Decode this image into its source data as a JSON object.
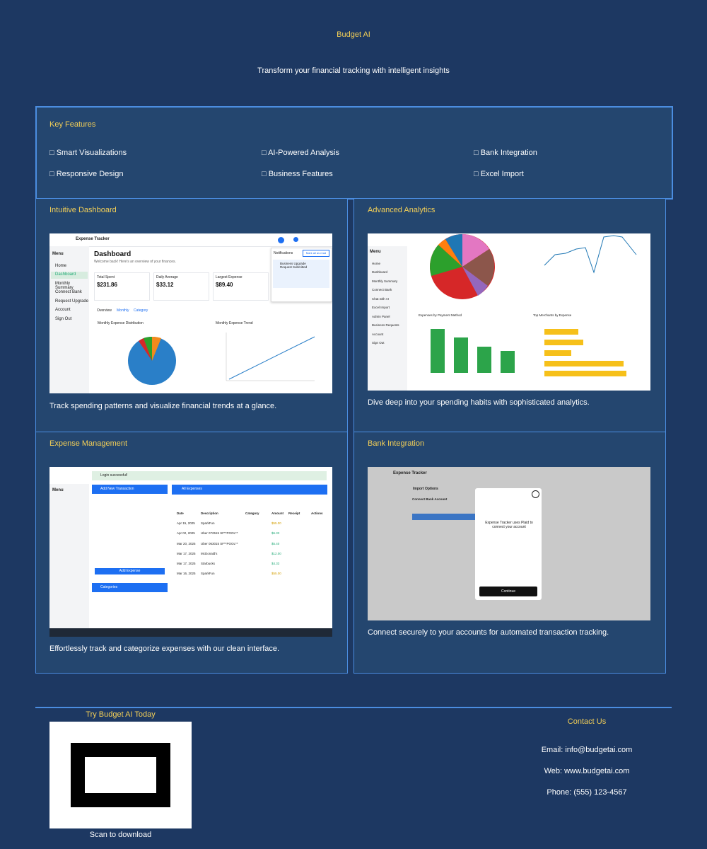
{
  "header": {
    "title": "Budget AI",
    "tagline": "Transform your financial tracking with intelligent insights"
  },
  "features": {
    "heading": "Key Features",
    "items": [
      "□ Smart Visualizations",
      "□ AI-Powered Analysis",
      "□ Bank Integration",
      "□ Responsive Design",
      "□ Business Features",
      "□ Excel Import"
    ]
  },
  "cards": {
    "dashboard": {
      "heading": "Intuitive Dashboard",
      "text": "Track spending patterns and visualize financial trends at a glance.",
      "shot": {
        "app": "Expense Tracker",
        "title": "Dashboard",
        "welcome": "Welcome back! Here's an overview of your finances.",
        "menu": [
          "Home",
          "Dashboard",
          "Monthly Summary",
          "Connect Bank",
          "Request Upgrade",
          "Account",
          "Sign Out"
        ],
        "stats": [
          {
            "label": "Total Spent",
            "value": "$231.86"
          },
          {
            "label": "Daily Average",
            "value": "$33.12"
          },
          {
            "label": "Largest Expense",
            "value": "$89.40"
          }
        ],
        "tabs": [
          "Overview",
          "Monthly",
          "Category"
        ],
        "chart1": "Monthly Expense Distribution",
        "chart2": "Monthly Expense Trend",
        "notif_title": "Notifications",
        "notif_btn": "Mark all as read",
        "notif_item": "Business Upgrade Request Submitted"
      }
    },
    "analytics": {
      "heading": "Advanced Analytics",
      "text": "Dive deep into your spending habits with sophisticated analytics.",
      "shot": {
        "menu": [
          "Home",
          "Dashboard",
          "Monthly Summary",
          "Connect Bank",
          "Chat with AI",
          "Excel Import",
          "Admin Panel",
          "Business Requests",
          "Account",
          "Sign Out"
        ],
        "chart1": "Expenses by Payment Method",
        "chart2": "Top Merchants by Expense"
      }
    },
    "expense": {
      "heading": "Expense Management",
      "text": "Effortlessly track and categorize expenses with our clean interface.",
      "shot": {
        "banner": "Login successful!",
        "add": "Add New Transaction",
        "all": "All Expenses",
        "categories": "Categories",
        "add_btn": "Add Expense",
        "cols": [
          "Date",
          "Description",
          "Category",
          "Amount",
          "Receipt",
          "Actions"
        ],
        "rows": [
          [
            "Apr 15, 2025",
            "SparkFun",
            "$55.00"
          ],
          [
            "Apr 02, 2025",
            "Uber 072515 SF**POOL**",
            "$6.33"
          ],
          [
            "Mar 20, 2025",
            "Uber 063015 SF**POOL**",
            "$5.40"
          ],
          [
            "Mar 17, 2025",
            "McDonald's",
            "$12.00"
          ],
          [
            "Mar 17, 2025",
            "Starbucks",
            "$4.33"
          ],
          [
            "Mar 16, 2025",
            "SparkFun",
            "$55.00"
          ]
        ]
      }
    },
    "bank": {
      "heading": "Bank Integration",
      "text": "Connect securely to your accounts for automated transaction tracking.",
      "shot": {
        "app": "Expense Tracker",
        "import": "Import Options",
        "connect": "Connect Bank Account",
        "modal_title": "Expense Tracker uses Plaid to connect your account",
        "continue": "Continue"
      }
    }
  },
  "cta": {
    "heading": "Try Budget AI Today",
    "scan": "Scan to download"
  },
  "contact": {
    "heading": "Contact Us",
    "email": "Email: info@budgetai.com",
    "web": "Web: www.budgetai.com",
    "phone": "Phone: (555) 123-4567"
  }
}
